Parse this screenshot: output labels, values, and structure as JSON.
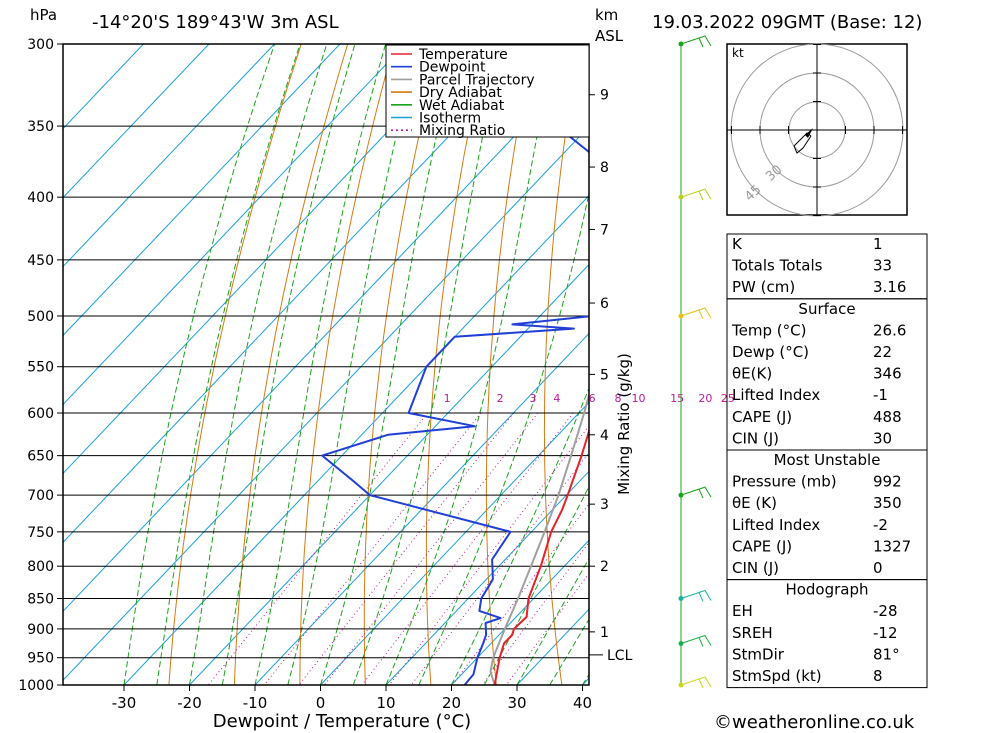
{
  "header": {
    "location": "-14°20'S  189°43'W  3m  ASL",
    "datetime": "19.03.2022  09GMT  (Base: 12)",
    "pressure_unit": "hPa",
    "height_unit": "km",
    "height_unit_sub": "ASL"
  },
  "footer": {
    "copyright": "©weatheronline.co.uk"
  },
  "colors": {
    "temperature": "#e8202a",
    "dewpoint": "#1f3fd6",
    "parcel": "#a0a0a0",
    "dry_adiabat": "#d67a14",
    "wet_adiabat": "#19a519",
    "isotherm": "#1aa0dc",
    "mixing_ratio": "#c0189a"
  },
  "legend": [
    {
      "label": "Temperature",
      "color_key": "temperature",
      "style": "solid"
    },
    {
      "label": "Dewpoint",
      "color_key": "dewpoint",
      "style": "solid"
    },
    {
      "label": "Parcel Trajectory",
      "color_key": "parcel",
      "style": "solid"
    },
    {
      "label": "Dry Adiabat",
      "color_key": "dry_adiabat",
      "style": "solid"
    },
    {
      "label": "Wet Adiabat",
      "color_key": "wet_adiabat",
      "style": "solid"
    },
    {
      "label": "Isotherm",
      "color_key": "isotherm",
      "style": "solid"
    },
    {
      "label": "Mixing Ratio",
      "color_key": "mixing_ratio",
      "style": "dotted"
    }
  ],
  "chart_data": {
    "type": "skew-t",
    "xlabel": "Dewpoint / Temperature (°C)",
    "ylabel_right": "Mixing Ratio (g/kg)",
    "x_ticks": [
      -30,
      -20,
      -10,
      0,
      10,
      20,
      30,
      40
    ],
    "xlim": [
      -40,
      40
    ],
    "pressure_levels": [
      300,
      350,
      400,
      450,
      500,
      550,
      600,
      650,
      700,
      750,
      800,
      850,
      900,
      950,
      1000
    ],
    "height_ticks": [
      {
        "label": "1",
        "p": 905
      },
      {
        "label": "2",
        "p": 800
      },
      {
        "label": "3",
        "p": 712
      },
      {
        "label": "4",
        "p": 625
      },
      {
        "label": "5",
        "p": 558
      },
      {
        "label": "6",
        "p": 488
      },
      {
        "label": "7",
        "p": 425
      },
      {
        "label": "8",
        "p": 378
      },
      {
        "label": "9",
        "p": 330
      }
    ],
    "lcl_label": "LCL",
    "lcl_pressure": 945,
    "mixing_ratio_labels": [
      "1",
      "2",
      "3",
      "4",
      "6",
      "8",
      "10",
      "15",
      "20",
      "25"
    ],
    "mixing_ratio_label_pressure": 590,
    "series": [
      {
        "name": "Temperature",
        "color_key": "temperature",
        "points": [
          [
            1000,
            26.6
          ],
          [
            975,
            25.0
          ],
          [
            950,
            23.4
          ],
          [
            925,
            22.0
          ],
          [
            910,
            22.0
          ],
          [
            900,
            21.4
          ],
          [
            880,
            21.6
          ],
          [
            850,
            19.2
          ],
          [
            800,
            16.4
          ],
          [
            750,
            13.0
          ],
          [
            720,
            11.5
          ],
          [
            700,
            10.2
          ],
          [
            650,
            6.6
          ],
          [
            600,
            2.4
          ],
          [
            550,
            -3.6
          ],
          [
            500,
            -9.4
          ],
          [
            450,
            -16.0
          ],
          [
            420,
            -20.2
          ],
          [
            400,
            -22.6
          ],
          [
            380,
            -25.4
          ],
          [
            360,
            -28.7
          ],
          [
            345,
            -35.0
          ],
          [
            320,
            -40.0
          ],
          [
            300,
            -44.5
          ]
        ]
      },
      {
        "name": "Dewpoint",
        "color_key": "dewpoint",
        "points": [
          [
            1000,
            22.0
          ],
          [
            980,
            21.8
          ],
          [
            950,
            20.0
          ],
          [
            925,
            18.8
          ],
          [
            910,
            18.0
          ],
          [
            890,
            16.2
          ],
          [
            882,
            17.8
          ],
          [
            870,
            13.5
          ],
          [
            850,
            12.0
          ],
          [
            820,
            11.0
          ],
          [
            790,
            8.0
          ],
          [
            750,
            6.8
          ],
          [
            700,
            -20.0
          ],
          [
            680,
            -25.0
          ],
          [
            650,
            -33.0
          ],
          [
            625,
            -26.0
          ],
          [
            615,
            -14.0
          ],
          [
            600,
            -26.0
          ],
          [
            550,
            -30.0
          ],
          [
            520,
            -30.0
          ],
          [
            512,
            -13.0
          ],
          [
            508,
            -23.0
          ],
          [
            500,
            -12.0
          ],
          [
            480,
            -9.0
          ],
          [
            450,
            -12.0
          ],
          [
            420,
            -16.0
          ],
          [
            412,
            -14.0
          ],
          [
            400,
            -20.0
          ],
          [
            385,
            -28.0
          ],
          [
            350,
            -45.0
          ],
          [
            325,
            -46.0
          ],
          [
            310,
            -43.0
          ],
          [
            300,
            -41.0
          ]
        ]
      },
      {
        "name": "Parcel Trajectory",
        "color_key": "parcel",
        "points": [
          [
            1000,
            26.6
          ],
          [
            975,
            24.0
          ],
          [
            950,
            22.4
          ],
          [
            900,
            20.0
          ],
          [
            850,
            17.6
          ],
          [
            800,
            14.9
          ],
          [
            750,
            12.0
          ],
          [
            700,
            8.8
          ],
          [
            650,
            5.0
          ],
          [
            600,
            0.8
          ],
          [
            550,
            -4.0
          ],
          [
            500,
            -9.5
          ],
          [
            450,
            -16.0
          ],
          [
            420,
            -20.8
          ],
          [
            400,
            -24.0
          ],
          [
            380,
            -27.5
          ],
          [
            360,
            -28.7
          ]
        ]
      }
    ]
  },
  "hodograph": {
    "unit": "kt",
    "ring_labels": [
      "30",
      "45"
    ]
  },
  "wind_barbs": [
    {
      "p": 1000,
      "color": "#c8d816"
    },
    {
      "p": 925,
      "color": "#19b04a"
    },
    {
      "p": 850,
      "color": "#19b0a0"
    },
    {
      "p": 700,
      "color": "#19a519"
    },
    {
      "p": 500,
      "color": "#e8c016"
    },
    {
      "p": 400,
      "color": "#b8d016"
    },
    {
      "p": 300,
      "color": "#19a519"
    }
  ],
  "indices": {
    "top": [
      {
        "label": "K",
        "value": "1"
      },
      {
        "label": "Totals Totals",
        "value": "33"
      },
      {
        "label": "PW (cm)",
        "value": "3.16"
      }
    ],
    "surface": {
      "title": "Surface",
      "rows": [
        {
          "label": "Temp (°C)",
          "value": "26.6"
        },
        {
          "label": "Dewp (°C)",
          "value": "22"
        },
        {
          "label": "θE(K)",
          "value": "346"
        },
        {
          "label": "Lifted Index",
          "value": "-1"
        },
        {
          "label": "CAPE (J)",
          "value": "488"
        },
        {
          "label": "CIN (J)",
          "value": "30"
        }
      ]
    },
    "most_unstable": {
      "title": "Most Unstable",
      "rows": [
        {
          "label": "Pressure (mb)",
          "value": "992"
        },
        {
          "label": "θE (K)",
          "value": "350"
        },
        {
          "label": "Lifted Index",
          "value": "-2"
        },
        {
          "label": "CAPE (J)",
          "value": "1327"
        },
        {
          "label": "CIN (J)",
          "value": "0"
        }
      ]
    },
    "hodograph": {
      "title": "Hodograph",
      "rows": [
        {
          "label": "EH",
          "value": "-28"
        },
        {
          "label": "SREH",
          "value": "-12"
        },
        {
          "label": "StmDir",
          "value": "81°"
        },
        {
          "label": "StmSpd (kt)",
          "value": "8"
        }
      ]
    }
  }
}
